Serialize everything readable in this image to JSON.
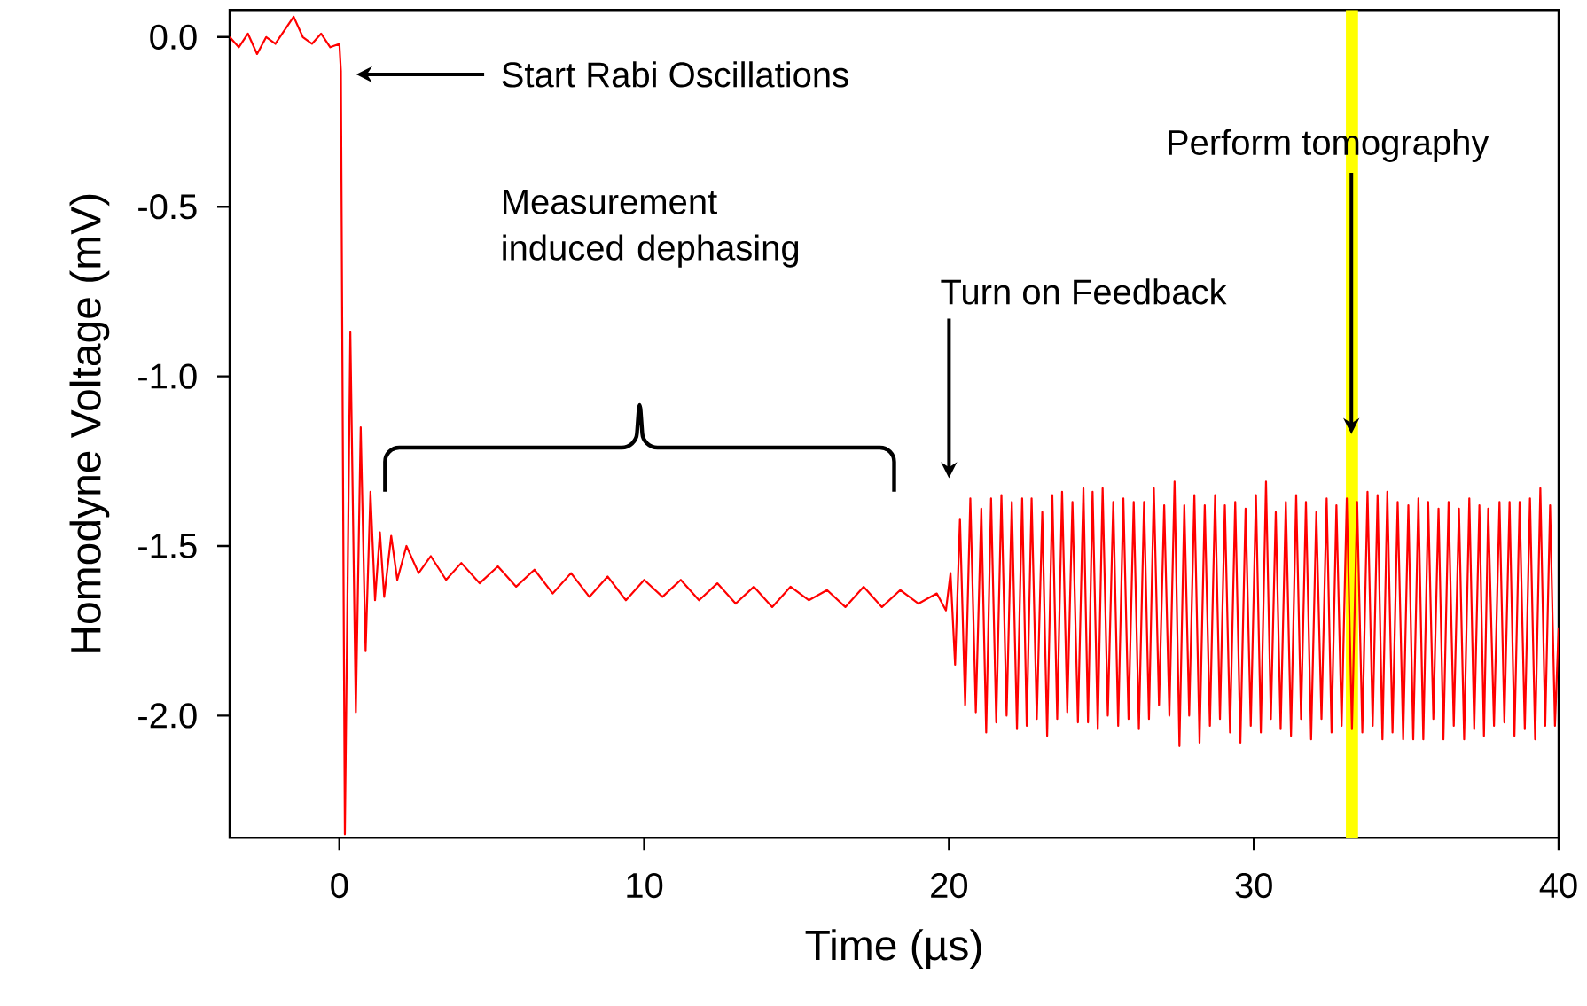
{
  "chart_data": {
    "type": "line",
    "xlabel": "Time (µs)",
    "ylabel": "Homodyne Voltage (mV)",
    "xlim": [
      -3.6,
      40
    ],
    "ylim": [
      -2.36,
      0.08
    ],
    "xticks": [
      0,
      10,
      20,
      30,
      40
    ],
    "yticks": [
      {
        "value": 0,
        "label": "0.0"
      },
      {
        "value": -0.5,
        "label": "-0.5"
      },
      {
        "value": -1,
        "label": "-1.0"
      },
      {
        "value": -1.5,
        "label": "-1.5"
      },
      {
        "value": -2,
        "label": "-2.0"
      }
    ],
    "color": "#ff0000",
    "grid": false,
    "legend": false,
    "marker": "none",
    "line_style": "solid",
    "x": [
      -3.6,
      -3.3,
      -3.0,
      -2.7,
      -2.4,
      -2.1,
      -1.8,
      -1.5,
      -1.2,
      -0.9,
      -0.6,
      -0.3,
      0.0,
      0.05,
      0.18,
      0.36,
      0.54,
      0.7,
      0.86,
      1.02,
      1.17,
      1.33,
      1.47,
      1.7,
      1.9,
      2.2,
      2.6,
      3.0,
      3.5,
      4.0,
      4.6,
      5.2,
      5.8,
      6.4,
      7.0,
      7.6,
      8.2,
      8.8,
      9.4,
      10.0,
      10.6,
      11.2,
      11.8,
      12.4,
      13.0,
      13.6,
      14.2,
      14.8,
      15.4,
      16.0,
      16.6,
      17.2,
      17.8,
      18.4,
      19.0,
      19.6,
      19.9,
      20.05,
      20.2,
      20.36,
      20.53,
      20.7,
      20.88,
      21.06,
      21.22,
      21.38,
      21.55,
      21.72,
      21.89,
      22.06,
      22.23,
      22.4,
      22.55,
      22.71,
      22.88,
      23.06,
      23.22,
      23.39,
      23.55,
      23.71,
      23.88,
      24.05,
      24.23,
      24.41,
      24.56,
      24.71,
      24.88,
      25.04,
      25.21,
      25.39,
      25.55,
      25.72,
      25.89,
      26.06,
      26.23,
      26.4,
      26.56,
      26.72,
      26.89,
      27.06,
      27.23,
      27.4,
      27.56,
      27.72,
      27.88,
      28.05,
      28.22,
      28.39,
      28.56,
      28.73,
      28.89,
      29.05,
      29.22,
      29.39,
      29.56,
      29.73,
      29.9,
      30.07,
      30.23,
      30.4,
      30.56,
      30.72,
      30.88,
      31.05,
      31.22,
      31.39,
      31.55,
      31.71,
      31.88,
      32.05,
      32.22,
      32.39,
      32.55,
      32.71,
      32.88,
      33.05,
      33.22,
      33.39,
      33.56,
      33.73,
      33.9,
      34.06,
      34.22,
      34.38,
      34.55,
      34.72,
      34.9,
      35.07,
      35.23,
      35.4,
      35.56,
      35.72,
      35.89,
      36.06,
      36.22,
      36.39,
      36.56,
      36.73,
      36.9,
      37.07,
      37.23,
      37.4,
      37.55,
      37.69,
      37.88,
      38.06,
      38.22,
      38.39,
      38.55,
      38.72,
      38.89,
      39.06,
      39.23,
      39.4,
      39.56,
      39.72,
      39.88,
      40.0
    ],
    "values": [
      0.0,
      -0.03,
      0.01,
      -0.05,
      0.0,
      -0.02,
      0.02,
      0.06,
      0.0,
      -0.02,
      0.01,
      -0.03,
      -0.02,
      -0.1,
      -2.35,
      -0.87,
      -1.99,
      -1.15,
      -1.81,
      -1.34,
      -1.66,
      -1.46,
      -1.65,
      -1.47,
      -1.6,
      -1.5,
      -1.58,
      -1.53,
      -1.6,
      -1.55,
      -1.61,
      -1.56,
      -1.62,
      -1.57,
      -1.64,
      -1.58,
      -1.65,
      -1.59,
      -1.66,
      -1.6,
      -1.65,
      -1.6,
      -1.66,
      -1.61,
      -1.67,
      -1.62,
      -1.68,
      -1.62,
      -1.66,
      -1.63,
      -1.68,
      -1.62,
      -1.68,
      -1.63,
      -1.67,
      -1.64,
      -1.69,
      -1.58,
      -1.85,
      -1.42,
      -1.97,
      -1.36,
      -1.99,
      -1.39,
      -2.05,
      -1.36,
      -2.02,
      -1.35,
      -2.0,
      -1.37,
      -2.04,
      -1.36,
      -2.03,
      -1.36,
      -2.01,
      -1.4,
      -2.06,
      -1.35,
      -2.01,
      -1.34,
      -1.99,
      -1.37,
      -2.02,
      -1.33,
      -2.02,
      -1.34,
      -2.04,
      -1.33,
      -2.0,
      -1.37,
      -2.03,
      -1.36,
      -2.01,
      -1.37,
      -2.04,
      -1.37,
      -2.01,
      -1.33,
      -1.97,
      -1.38,
      -2.0,
      -1.31,
      -2.09,
      -1.38,
      -2.0,
      -1.35,
      -2.08,
      -1.38,
      -2.03,
      -1.35,
      -2.01,
      -1.38,
      -2.05,
      -1.37,
      -2.08,
      -1.39,
      -2.03,
      -1.35,
      -2.05,
      -1.31,
      -2.01,
      -1.4,
      -2.04,
      -1.37,
      -2.06,
      -1.35,
      -2.01,
      -1.37,
      -2.07,
      -1.4,
      -2.01,
      -1.36,
      -2.05,
      -1.38,
      -2.03,
      -1.36,
      -2.04,
      -1.37,
      -2.05,
      -1.34,
      -2.03,
      -1.35,
      -2.07,
      -1.34,
      -2.05,
      -1.37,
      -2.07,
      -1.38,
      -2.07,
      -1.36,
      -2.07,
      -1.37,
      -2.01,
      -1.39,
      -2.07,
      -1.37,
      -2.03,
      -1.39,
      -2.07,
      -1.36,
      -2.04,
      -1.38,
      -2.06,
      -1.39,
      -2.03,
      -1.37,
      -2.02,
      -1.37,
      -2.06,
      -1.37,
      -2.04,
      -1.36,
      -2.07,
      -1.33,
      -2.03,
      -1.38,
      -2.03,
      -1.74
    ],
    "bands": [
      {
        "axis": "x",
        "from": 33.02,
        "to": 33.42,
        "color": "#ffff00"
      }
    ],
    "annotations": [
      "Start Rabi Oscillations",
      "Measurement induced dephasing",
      "Turn on Feedback",
      "Perform tomography"
    ]
  }
}
